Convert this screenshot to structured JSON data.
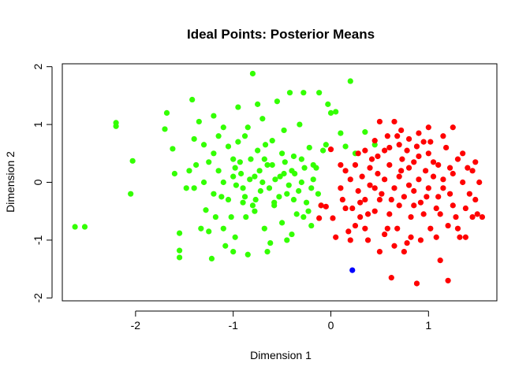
{
  "chart_data": {
    "type": "scatter",
    "title": "Ideal Points: Posterior Means",
    "xlabel": "Dimension 1",
    "ylabel": "Dimension 2",
    "xlim": [
      -2.75,
      1.7
    ],
    "ylim": [
      -2.05,
      2.05
    ],
    "xticks": [
      -2,
      -1,
      0,
      1
    ],
    "yticks": [
      -2,
      -1,
      0,
      1,
      2
    ],
    "x_tick_labels": [
      "-2",
      "-1",
      "0",
      "1"
    ],
    "y_tick_labels": [
      "-2",
      "-1",
      "0",
      "1",
      "2"
    ],
    "legend": "none",
    "grid": false,
    "colors": {
      "green": "#33ff00",
      "red": "#ff0000",
      "blue": "#0000ff"
    },
    "series": [
      {
        "color": "#33ff00",
        "points": [
          [
            -2.62,
            -0.77
          ],
          [
            -2.52,
            -0.77
          ],
          [
            -2.2,
            1.03
          ],
          [
            -2.2,
            0.97
          ],
          [
            -2.03,
            0.37
          ],
          [
            -2.05,
            -0.2
          ],
          [
            -1.68,
            1.2
          ],
          [
            -1.7,
            0.92
          ],
          [
            -1.62,
            0.58
          ],
          [
            -1.55,
            -1.18
          ],
          [
            -1.55,
            -1.3
          ],
          [
            -1.48,
            -0.1
          ],
          [
            -1.45,
            0.2
          ],
          [
            -1.42,
            1.43
          ],
          [
            -1.4,
            0.75
          ],
          [
            -1.35,
            1.05
          ],
          [
            -1.3,
            0.0
          ],
          [
            -1.28,
            -0.48
          ],
          [
            -1.25,
            -0.85
          ],
          [
            -1.22,
            -1.32
          ],
          [
            -1.2,
            0.5
          ],
          [
            -1.15,
            0.2
          ],
          [
            -1.12,
            -0.25
          ],
          [
            -1.1,
            0.95
          ],
          [
            -1.08,
            -1.1
          ],
          [
            -1.05,
            0.62
          ],
          [
            -1.02,
            -0.6
          ],
          [
            -1.0,
            0.1
          ],
          [
            -0.98,
            -0.95
          ],
          [
            -0.95,
            1.3
          ],
          [
            -0.93,
            0.35
          ],
          [
            -0.9,
            -0.35
          ],
          [
            -0.88,
            0.8
          ],
          [
            -0.85,
            -1.25
          ],
          [
            -0.83,
            0.05
          ],
          [
            -0.8,
            1.88
          ],
          [
            -0.78,
            -0.5
          ],
          [
            -0.75,
            0.55
          ],
          [
            -0.72,
            -0.15
          ],
          [
            -0.7,
            1.1
          ],
          [
            -0.68,
            -0.8
          ],
          [
            -0.65,
            0.3
          ],
          [
            -0.62,
            -1.05
          ],
          [
            -0.6,
            0.72
          ],
          [
            -0.58,
            -0.4
          ],
          [
            -0.55,
            1.4
          ],
          [
            -0.52,
            0.1
          ],
          [
            -0.5,
            -0.7
          ],
          [
            -0.48,
            0.9
          ],
          [
            -0.45,
            -0.2
          ],
          [
            -0.42,
            1.55
          ],
          [
            -0.4,
            -0.9
          ],
          [
            -0.38,
            0.45
          ],
          [
            -0.35,
            -0.55
          ],
          [
            -0.32,
            1.0
          ],
          [
            -0.3,
            0.0
          ],
          [
            -0.28,
            1.55
          ],
          [
            -0.25,
            -0.35
          ],
          [
            -0.22,
            0.6
          ],
          [
            -0.2,
            -0.75
          ],
          [
            -0.15,
            0.25
          ],
          [
            -0.12,
            1.55
          ],
          [
            -0.1,
            -0.4
          ],
          [
            -0.08,
            0.55
          ],
          [
            -0.05,
            0.65
          ],
          [
            -0.03,
            1.35
          ],
          [
            0.0,
            1.2
          ],
          [
            0.05,
            1.22
          ],
          [
            0.1,
            0.85
          ],
          [
            0.15,
            0.62
          ],
          [
            0.2,
            1.75
          ],
          [
            0.25,
            0.5
          ],
          [
            0.35,
            0.87
          ],
          [
            0.45,
            0.65
          ],
          [
            -1.4,
            -0.1
          ],
          [
            -1.38,
            0.3
          ],
          [
            -1.33,
            -0.8
          ],
          [
            -1.18,
            -0.6
          ],
          [
            -1.15,
            0.8
          ],
          [
            -1.05,
            -0.3
          ],
          [
            -1.0,
            0.4
          ],
          [
            -0.97,
            -0.05
          ],
          [
            -0.92,
            0.15
          ],
          [
            -0.87,
            -0.6
          ],
          [
            -0.82,
            0.4
          ],
          [
            -0.77,
            -0.3
          ],
          [
            -0.73,
            0.2
          ],
          [
            -0.67,
            0.65
          ],
          [
            -0.63,
            -0.1
          ],
          [
            -0.57,
            0.05
          ],
          [
            -0.53,
            -0.25
          ],
          [
            -0.47,
            0.35
          ],
          [
            -0.43,
            -0.05
          ],
          [
            -0.37,
            0.15
          ],
          [
            -0.33,
            -0.15
          ],
          [
            -0.27,
            0.25
          ],
          [
            -0.23,
            -0.5
          ],
          [
            -0.18,
            0.05
          ],
          [
            -0.13,
            -0.2
          ],
          [
            -1.25,
            0.35
          ],
          [
            -1.1,
            -0.8
          ],
          [
            -0.95,
            0.7
          ],
          [
            -0.9,
            -0.1
          ],
          [
            -0.85,
            0.95
          ],
          [
            -0.8,
            -0.4
          ],
          [
            -0.7,
            0.0
          ],
          [
            -0.6,
            0.3
          ],
          [
            -0.5,
            0.5
          ],
          [
            -0.4,
            0.2
          ],
          [
            -0.3,
            0.4
          ],
          [
            -0.2,
            -0.1
          ],
          [
            -1.55,
            -0.88
          ],
          [
            -1.6,
            0.15
          ],
          [
            -1.2,
            1.15
          ],
          [
            -1.0,
            -1.2
          ],
          [
            -0.75,
            1.35
          ],
          [
            -0.65,
            -1.2
          ],
          [
            -0.45,
            -1.0
          ],
          [
            -1.3,
            0.65
          ],
          [
            -1.2,
            -0.2
          ],
          [
            -1.1,
            0.0
          ],
          [
            -0.98,
            0.25
          ],
          [
            -0.88,
            -0.25
          ],
          [
            -0.78,
            0.1
          ],
          [
            -0.68,
            0.4
          ],
          [
            -0.58,
            -0.35
          ],
          [
            -0.48,
            0.15
          ],
          [
            -0.38,
            -0.3
          ],
          [
            -0.28,
            -0.6
          ],
          [
            -0.18,
            0.3
          ]
        ]
      },
      {
        "color": "#ff0000",
        "points": [
          [
            -0.12,
            -0.62
          ],
          [
            -0.1,
            -0.4
          ],
          [
            -0.05,
            -0.42
          ],
          [
            0.0,
            0.57
          ],
          [
            0.02,
            -0.62
          ],
          [
            0.05,
            -0.95
          ],
          [
            0.1,
            -0.1
          ],
          [
            0.12,
            -0.3
          ],
          [
            0.15,
            0.2
          ],
          [
            0.18,
            -0.85
          ],
          [
            0.2,
            -1.0
          ],
          [
            0.22,
            -0.45
          ],
          [
            0.25,
            0.3
          ],
          [
            0.28,
            -0.15
          ],
          [
            0.3,
            -0.6
          ],
          [
            0.32,
            0.1
          ],
          [
            0.35,
            -0.3
          ],
          [
            0.38,
            -1.0
          ],
          [
            0.4,
            -0.05
          ],
          [
            0.42,
            0.4
          ],
          [
            0.45,
            -0.5
          ],
          [
            0.48,
            0.15
          ],
          [
            0.5,
            1.05
          ],
          [
            0.52,
            -0.2
          ],
          [
            0.55,
            0.55
          ],
          [
            0.58,
            -0.8
          ],
          [
            0.6,
            0.3
          ],
          [
            0.62,
            -1.65
          ],
          [
            0.65,
            -0.1
          ],
          [
            0.68,
            0.8
          ],
          [
            0.7,
            -0.4
          ],
          [
            0.72,
            0.2
          ],
          [
            0.75,
            -1.2
          ],
          [
            0.78,
            0.55
          ],
          [
            0.8,
            -0.05
          ],
          [
            0.82,
            -0.6
          ],
          [
            0.85,
            0.35
          ],
          [
            0.88,
            -1.75
          ],
          [
            0.9,
            0.05
          ],
          [
            0.92,
            -0.35
          ],
          [
            0.95,
            0.7
          ],
          [
            0.98,
            -0.25
          ],
          [
            1.0,
            0.5
          ],
          [
            1.02,
            -0.8
          ],
          [
            1.05,
            0.1
          ],
          [
            1.08,
            -0.45
          ],
          [
            1.1,
            0.3
          ],
          [
            1.12,
            -1.35
          ],
          [
            1.15,
            -0.1
          ],
          [
            1.18,
            0.6
          ],
          [
            1.2,
            -1.7
          ],
          [
            1.22,
            -0.2
          ],
          [
            1.25,
            0.15
          ],
          [
            1.28,
            -0.6
          ],
          [
            1.3,
            0.4
          ],
          [
            1.32,
            -0.95
          ],
          [
            1.35,
            0.0
          ],
          [
            1.38,
            -0.45
          ],
          [
            1.4,
            0.25
          ],
          [
            1.42,
            -0.2
          ],
          [
            1.45,
            0.2
          ],
          [
            1.48,
            -0.3
          ],
          [
            1.5,
            -0.55
          ],
          [
            1.52,
            0.0
          ],
          [
            1.55,
            -0.6
          ],
          [
            0.65,
            1.05
          ],
          [
            0.35,
            0.55
          ],
          [
            0.45,
            -0.1
          ],
          [
            0.55,
            0.05
          ],
          [
            0.6,
            -0.55
          ],
          [
            0.7,
            0.1
          ],
          [
            0.75,
            -0.25
          ],
          [
            0.8,
            0.25
          ],
          [
            0.85,
            -0.15
          ],
          [
            0.9,
            0.45
          ],
          [
            0.95,
            -0.55
          ],
          [
            1.0,
            -0.1
          ],
          [
            1.05,
            0.35
          ],
          [
            1.1,
            -0.25
          ],
          [
            1.15,
            0.05
          ],
          [
            0.5,
            -0.3
          ],
          [
            0.4,
            0.25
          ],
          [
            0.3,
            -0.35
          ],
          [
            0.2,
            0.05
          ],
          [
            0.6,
            0.6
          ],
          [
            0.7,
            0.65
          ],
          [
            0.8,
            0.75
          ],
          [
            0.9,
            0.85
          ],
          [
            1.0,
            0.95
          ],
          [
            1.25,
            0.95
          ],
          [
            0.5,
            -1.2
          ],
          [
            0.65,
            -1.1
          ],
          [
            0.78,
            -1.05
          ],
          [
            0.92,
            -1.0
          ],
          [
            1.08,
            -0.95
          ],
          [
            1.2,
            -0.75
          ],
          [
            0.25,
            -0.75
          ],
          [
            0.35,
            -0.8
          ],
          [
            0.55,
            -0.9
          ],
          [
            0.68,
            -0.8
          ],
          [
            0.82,
            -0.95
          ],
          [
            1.3,
            -0.8
          ],
          [
            1.38,
            -0.95
          ],
          [
            1.45,
            -0.6
          ],
          [
            0.28,
            0.5
          ],
          [
            0.45,
            0.72
          ],
          [
            0.58,
            0.8
          ],
          [
            0.72,
            0.9
          ],
          [
            0.88,
            0.62
          ],
          [
            1.02,
            0.7
          ],
          [
            1.15,
            0.8
          ],
          [
            1.35,
            0.5
          ],
          [
            1.48,
            0.35
          ],
          [
            0.15,
            -0.45
          ],
          [
            0.38,
            -0.55
          ],
          [
            0.62,
            -0.3
          ],
          [
            0.85,
            -0.4
          ],
          [
            1.12,
            -0.55
          ],
          [
            1.25,
            -0.4
          ],
          [
            0.1,
            0.3
          ],
          [
            0.48,
            0.45
          ],
          [
            0.73,
            0.4
          ],
          [
            0.97,
            0.2
          ],
          [
            1.22,
            0.25
          ]
        ]
      },
      {
        "color": "#0000ff",
        "points": [
          [
            0.22,
            -1.52
          ]
        ]
      }
    ]
  }
}
